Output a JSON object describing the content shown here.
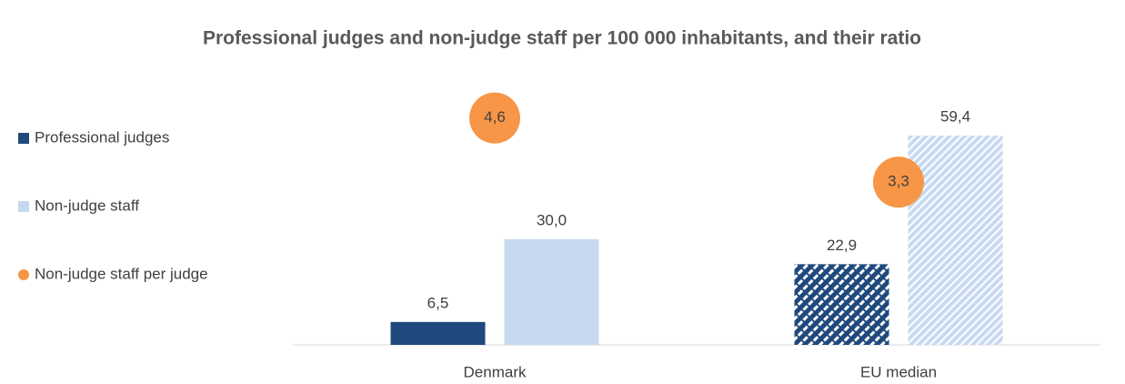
{
  "chart_data": {
    "type": "bar",
    "title": "Professional judges and non-judge staff per 100 000 inhabitants, and their ratio",
    "categories": [
      "Denmark",
      "EU median"
    ],
    "hatched": [
      false,
      true
    ],
    "series": [
      {
        "name": "Professional judges",
        "color": "#1f497d",
        "values": [
          6.5,
          22.9
        ],
        "value_labels": [
          "6,5",
          "22,9"
        ]
      },
      {
        "name": "Non-judge staff",
        "color": "#c6d9f1",
        "values": [
          30.0,
          59.4
        ],
        "value_labels": [
          "30,0",
          "59,4"
        ]
      },
      {
        "name": "Non-judge staff per judge",
        "color": "#f79646",
        "axis": "y2",
        "values": [
          4.6,
          3.3
        ],
        "value_labels": [
          "4,6",
          "3,3"
        ]
      }
    ],
    "ylim": [
      0,
      70
    ],
    "y2lim": [
      0,
      5
    ]
  }
}
